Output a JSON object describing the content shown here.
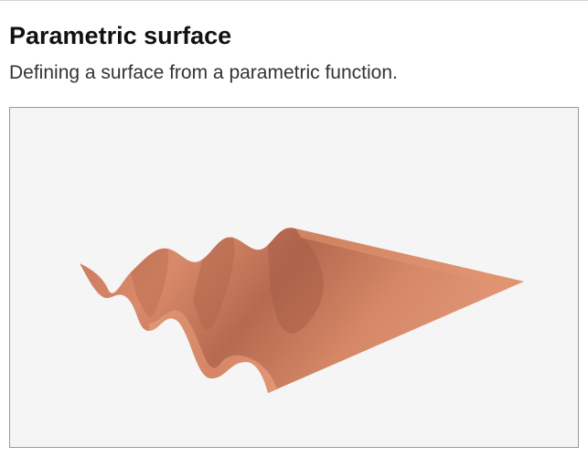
{
  "header": {
    "title": "Parametric surface",
    "subtitle": "Defining a surface from a parametric function."
  },
  "viewer": {
    "background": "#f5f5f5",
    "border_color": "#9a9a9a"
  },
  "surface": {
    "base_color": "#d98a6a",
    "highlight_color": "#e79a78",
    "shadow_color": "#a8614a"
  }
}
